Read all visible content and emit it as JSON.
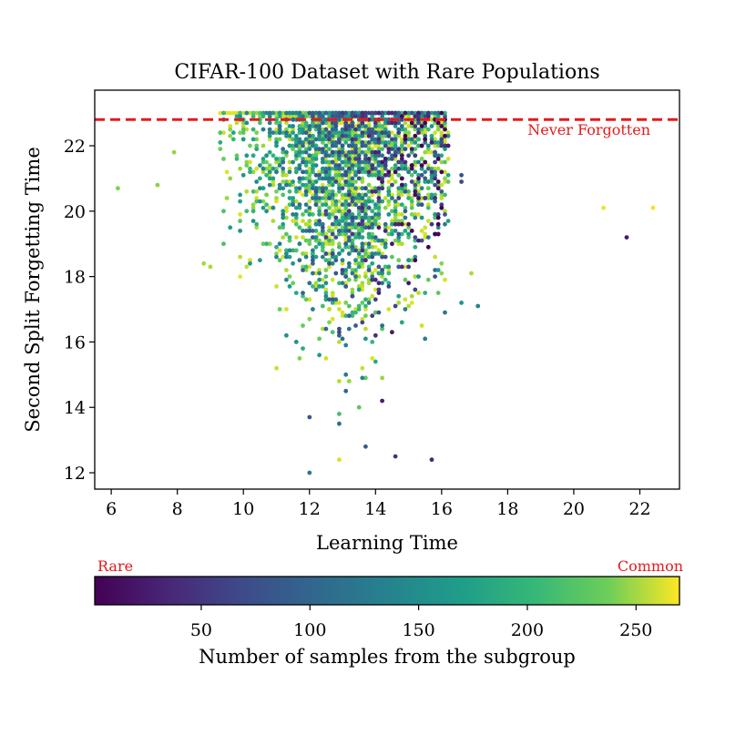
{
  "chart_data": {
    "type": "scatter",
    "title": "CIFAR-100 Dataset with Rare Populations",
    "xlabel": "Learning Time",
    "ylabel": "Second Split Forgetting Time",
    "xlim": [
      5.5,
      23.2
    ],
    "ylim": [
      11.5,
      23.7
    ],
    "xticks": [
      6,
      8,
      10,
      12,
      14,
      16,
      18,
      20,
      22
    ],
    "yticks": [
      12,
      14,
      16,
      18,
      20,
      22
    ],
    "grid": false,
    "reference_line": {
      "y": 22.8,
      "style": "dashed",
      "color": "#e31a1c",
      "label": "Never Forgotten"
    },
    "colorbar": {
      "label": "Number of samples from the subgroup",
      "range": [
        1,
        270
      ],
      "ticks": [
        50,
        100,
        150,
        200,
        250
      ],
      "colormap": "viridis",
      "low_label": "Rare",
      "high_label": "Common",
      "annotation_color": "#e31a1c"
    },
    "cluster": {
      "description": "Dense mass of points, learning time 9-16.5, forgetting time 12-23, colored by subgroup size",
      "point_count": 2600,
      "x_range": [
        9,
        16.5
      ],
      "y_range": [
        12,
        23
      ],
      "never_forgotten_row_y": 23
    },
    "outliers": [
      {
        "x": 6.2,
        "y": 20.7,
        "c": 215
      },
      {
        "x": 7.4,
        "y": 20.8,
        "c": 220
      },
      {
        "x": 7.9,
        "y": 21.8,
        "c": 225
      },
      {
        "x": 8.8,
        "y": 18.4,
        "c": 230
      },
      {
        "x": 9.0,
        "y": 18.3,
        "c": 235
      },
      {
        "x": 9.9,
        "y": 18.0,
        "c": 260
      },
      {
        "x": 12.0,
        "y": 12.0,
        "c": 110
      },
      {
        "x": 12.9,
        "y": 12.4,
        "c": 255
      },
      {
        "x": 13.7,
        "y": 12.8,
        "c": 80
      },
      {
        "x": 14.6,
        "y": 12.5,
        "c": 40
      },
      {
        "x": 15.7,
        "y": 12.4,
        "c": 30
      },
      {
        "x": 16.6,
        "y": 21.1,
        "c": 70
      },
      {
        "x": 16.6,
        "y": 20.9,
        "c": 60
      },
      {
        "x": 17.1,
        "y": 17.1,
        "c": 120
      },
      {
        "x": 16.9,
        "y": 18.1,
        "c": 235
      },
      {
        "x": 16.6,
        "y": 17.2,
        "c": 140
      },
      {
        "x": 20.9,
        "y": 20.1,
        "c": 262
      },
      {
        "x": 21.6,
        "y": 19.2,
        "c": 20
      },
      {
        "x": 22.4,
        "y": 20.1,
        "c": 265
      }
    ]
  }
}
